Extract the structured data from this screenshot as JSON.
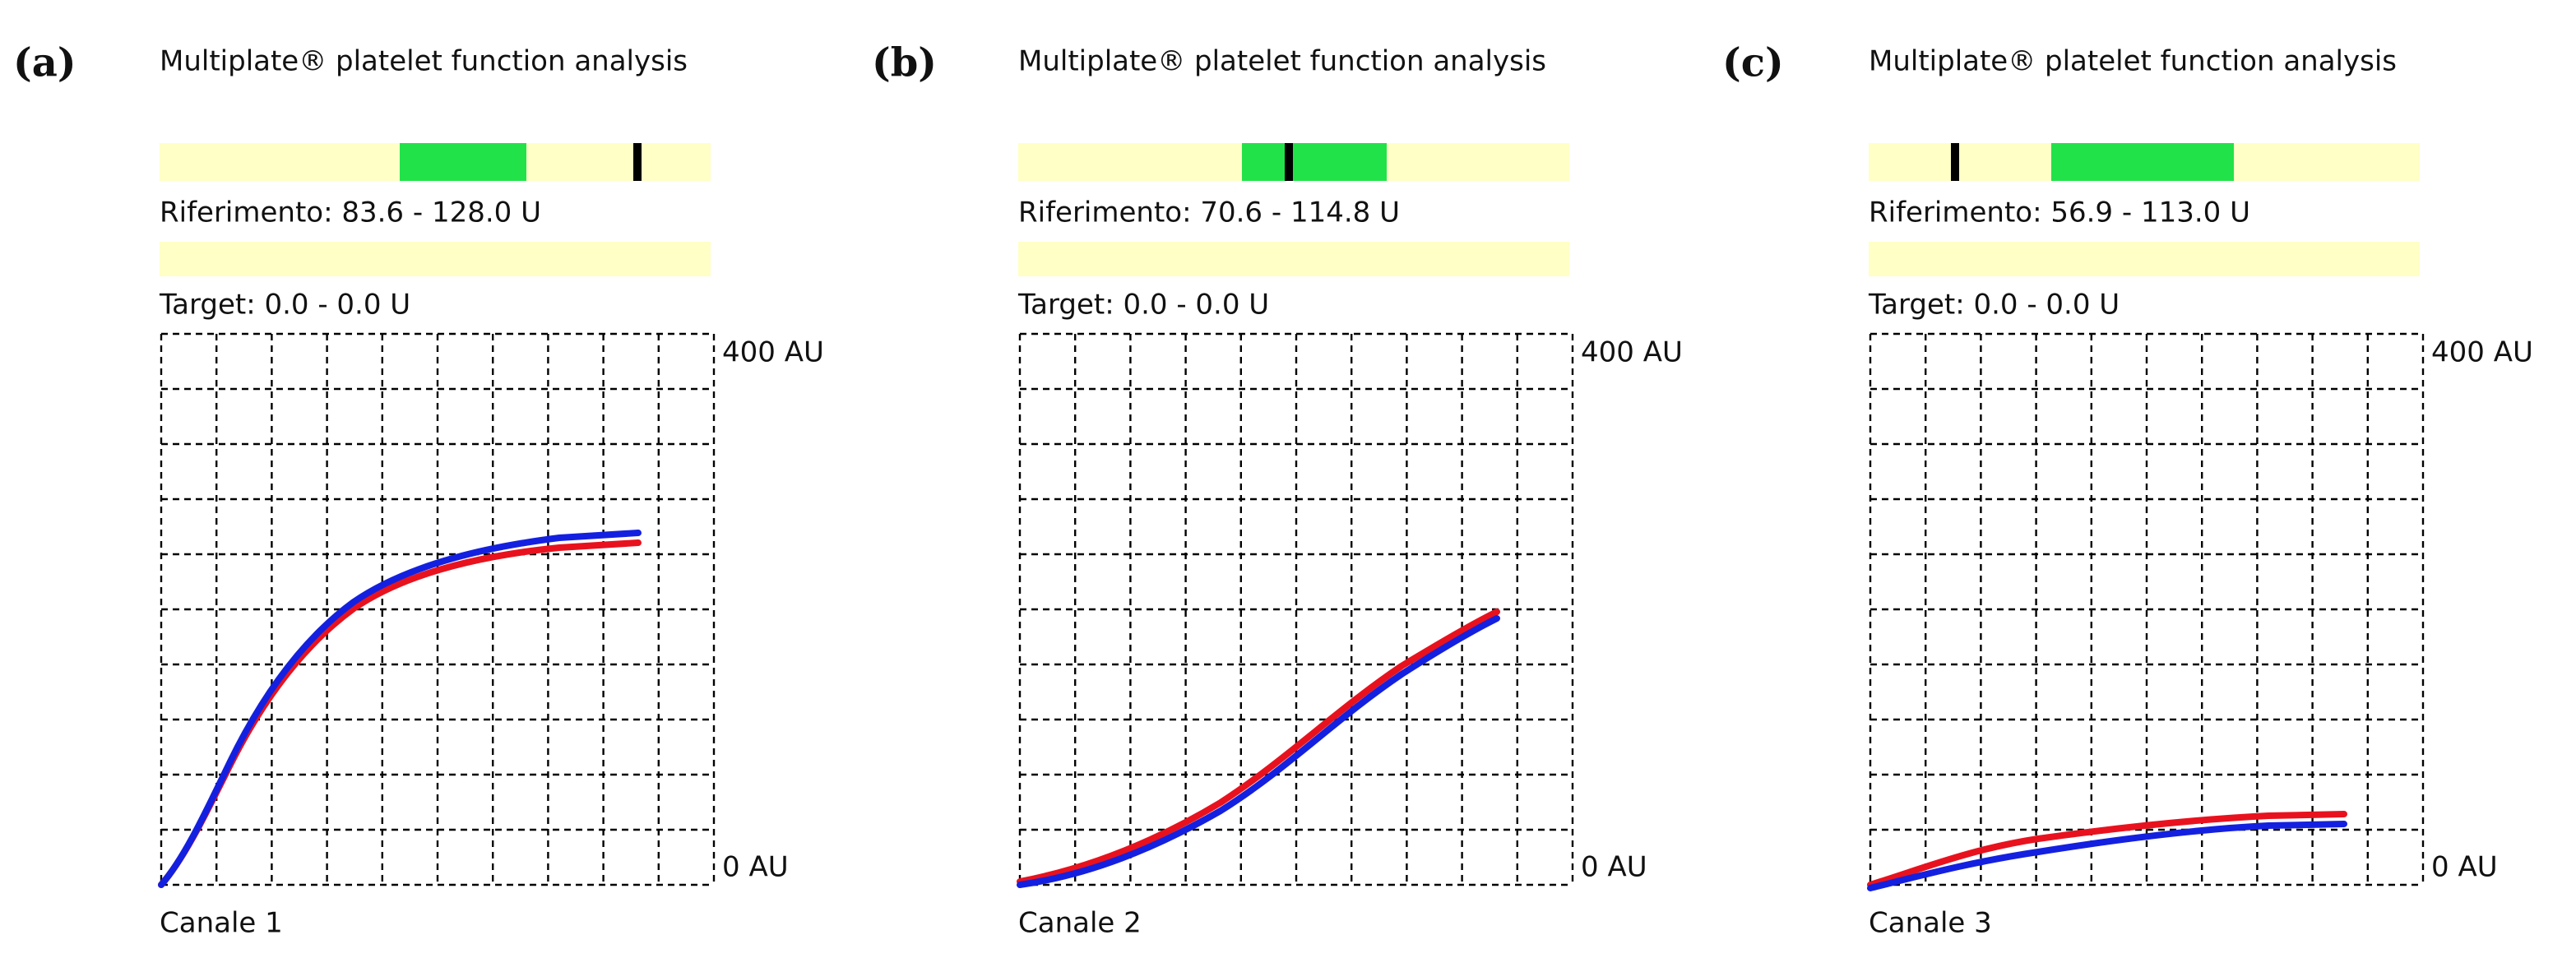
{
  "panels": [
    {
      "label": "(a)",
      "title": "Multiplate® platelet function analysis",
      "reference": "Riferimento: 83.6 - 128.0 U",
      "target": "Target: 0.0 - 0.0 U",
      "y_top": "400 AU",
      "y_bottom": "0 AU",
      "channel": "Canale 1"
    },
    {
      "label": "(b)",
      "title": "Multiplate® platelet function analysis",
      "reference": "Riferimento: 70.6 - 114.8 U",
      "target": "Target: 0.0 - 0.0 U",
      "y_top": "400 AU",
      "y_bottom": "0 AU",
      "channel": "Canale 2"
    },
    {
      "label": "(c)",
      "title": "Multiplate® platelet function analysis",
      "reference": "Riferimento: 56.9 - 113.0 U",
      "target": "Target: 0.0 - 0.0 U",
      "y_top": "400 AU",
      "y_bottom": "0 AU",
      "channel": "Canale 3"
    }
  ]
}
